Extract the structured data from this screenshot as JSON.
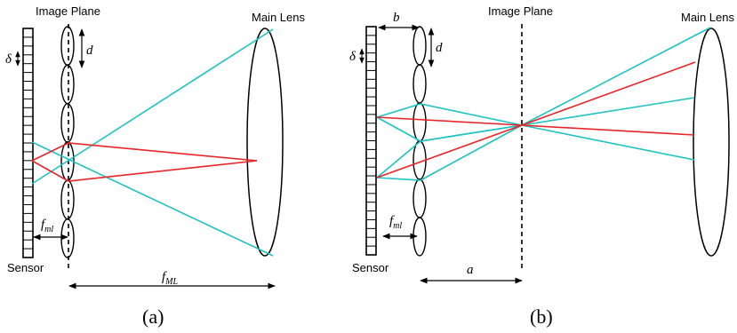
{
  "panel_a": {
    "image_plane": "Image Plane",
    "main_lens": "Main Lens",
    "sensor": "Sensor",
    "delta": "δ",
    "d": "d",
    "f_ml_main": "f",
    "f_ml_sub": "ml",
    "f_ML_main": "f",
    "f_ML_sub": "ML",
    "caption": "(a)"
  },
  "panel_b": {
    "image_plane": "Image Plane",
    "main_lens": "Main Lens",
    "sensor": "Sensor",
    "delta": "δ",
    "d": "d",
    "b": "b",
    "a": "a",
    "f_ml_main": "f",
    "f_ml_sub": "ml",
    "caption": "(b)"
  },
  "colors": {
    "cyan_ray": "#1fc2c2",
    "red_ray": "#e8262a"
  }
}
